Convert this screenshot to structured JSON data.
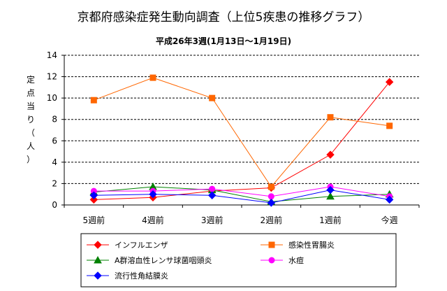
{
  "chart_data": {
    "type": "line",
    "title": "京都府感染症発生動向調査（上位5疾患の推移グラフ）",
    "subtitle": "平成26年3週(1月13日～1月19日)",
    "ylabel_chars": [
      "定",
      "点",
      "当",
      "り",
      "（",
      "人",
      "）"
    ],
    "ylim": [
      0,
      14
    ],
    "yticks": [
      0,
      2,
      4,
      6,
      8,
      10,
      12,
      14
    ],
    "grid": true,
    "legend_position": "bottom",
    "categories": [
      "5週前",
      "4週前",
      "3週前",
      "2週前",
      "1週前",
      "今週"
    ],
    "series": [
      {
        "name": "インフルエンザ",
        "color": "#ff0000",
        "marker": "diamond",
        "values": [
          0.5,
          0.7,
          1.3,
          1.6,
          4.7,
          11.5
        ]
      },
      {
        "name": "感染性胃腸炎",
        "color": "#ff6600",
        "marker": "square",
        "values": [
          9.8,
          11.9,
          10.0,
          1.7,
          8.2,
          7.4
        ]
      },
      {
        "name": "A群溶血性レンサ球菌咽頭炎",
        "color": "#008000",
        "marker": "triangle",
        "values": [
          1.2,
          1.7,
          1.4,
          0.3,
          0.8,
          1.0
        ]
      },
      {
        "name": "水痘",
        "color": "#ff00ff",
        "marker": "circle",
        "values": [
          1.3,
          1.3,
          1.5,
          0.8,
          1.7,
          0.8
        ]
      },
      {
        "name": "流行性角結膜炎",
        "color": "#0000ff",
        "marker": "diamond",
        "values": [
          0.9,
          1.0,
          0.9,
          0.2,
          1.4,
          0.5
        ]
      }
    ]
  }
}
